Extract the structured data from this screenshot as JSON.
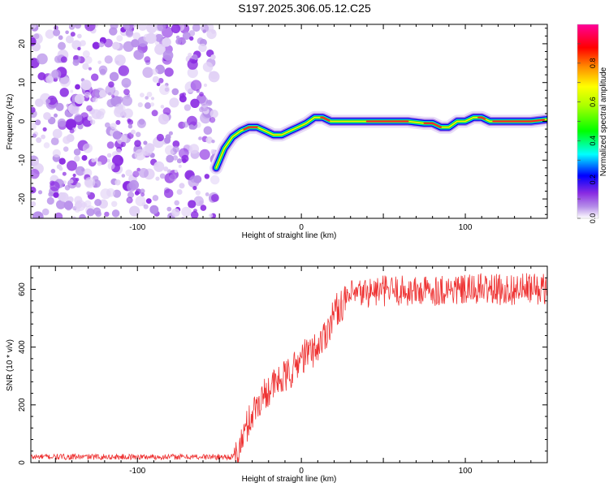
{
  "title": "S197.2025.306.05.12.C25",
  "colors": {
    "line": "#ee3333",
    "frame": "#000000",
    "noise": "#8a2be2"
  },
  "chart_data": [
    {
      "type": "heatmap",
      "title": "S197.2025.306.05.12.C25",
      "xlabel": "Height of straight line (km)",
      "ylabel": "Frequency (Hz)",
      "xlim": [
        -165,
        150
      ],
      "ylim": [
        -25,
        25
      ],
      "xticks": [
        -100,
        0,
        100
      ],
      "yticks": [
        -20,
        -10,
        0,
        10,
        20
      ],
      "colorbar": {
        "label": "Normalized spectral amplitude",
        "range": [
          0,
          1
        ],
        "ticks": [
          0.0,
          0.2,
          0.4,
          0.6,
          0.8
        ],
        "tick_labels": [
          "0.0",
          "0.2",
          "0.4",
          "0.6",
          "0.8"
        ]
      },
      "noise_region_x": [
        -165,
        -52
      ],
      "ridge": {
        "x": [
          -52,
          -47,
          -42,
          -37,
          -32,
          -27,
          -22,
          -17,
          -12,
          -7,
          -2,
          3,
          8,
          13,
          18,
          25,
          35,
          50,
          65,
          75,
          80,
          85,
          90,
          95,
          100,
          105,
          110,
          115,
          125,
          140,
          150
        ],
        "freq": [
          -12,
          -7,
          -4,
          -2.5,
          -1.5,
          -1.5,
          -2.5,
          -3.5,
          -3.5,
          -2.5,
          -1.5,
          -0.5,
          1,
          1,
          0,
          0,
          0,
          0,
          0,
          -0.5,
          -0.5,
          -1.5,
          -1.5,
          0,
          0,
          1,
          1,
          0,
          0,
          0,
          0.5
        ]
      }
    },
    {
      "type": "line",
      "xlabel": "Height of straight line (km)",
      "ylabel": "SNR (10 * v/v)",
      "xlim": [
        -165,
        150
      ],
      "ylim": [
        0,
        680
      ],
      "xticks": [
        -100,
        0,
        100
      ],
      "yticks": [
        0,
        200,
        400,
        600
      ],
      "series": [
        {
          "name": "SNR",
          "x": [
            -165,
            -120,
            -80,
            -50,
            -41,
            -38,
            -35,
            -30,
            -25,
            -20,
            -15,
            -10,
            -5,
            0,
            5,
            10,
            15,
            20,
            25,
            30,
            40,
            50,
            60,
            70,
            80,
            90,
            100,
            110,
            120,
            130,
            140,
            150
          ],
          "y": [
            20,
            20,
            20,
            20,
            20,
            40,
            100,
            170,
            220,
            255,
            275,
            295,
            320,
            365,
            380,
            400,
            450,
            520,
            550,
            575,
            590,
            595,
            595,
            592,
            597,
            600,
            595,
            603,
            598,
            600,
            602,
            600
          ]
        }
      ]
    }
  ]
}
